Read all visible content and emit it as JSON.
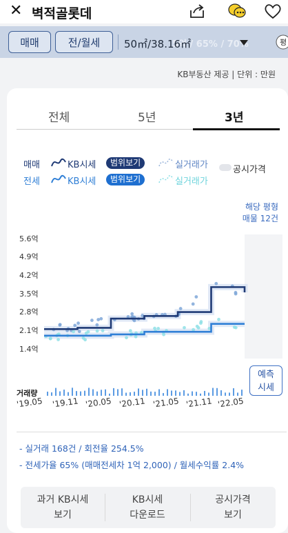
{
  "header": {
    "title": "벽적골롯데"
  },
  "filter": {
    "deal_type": "매매",
    "lease_type": "전/월세",
    "area": "50㎡/38.16㎡",
    "faded_background_text": "5억 / 65% / 70%"
  },
  "source_note": "KB부동산 제공 | 단위 : 만원",
  "tabs": [
    {
      "label": "전체"
    },
    {
      "label": "5년"
    },
    {
      "label": "3년"
    }
  ],
  "legend": {
    "sale_label": "매매",
    "lease_label": "전세",
    "kb_price": "KB시세",
    "range_view": "범위보기",
    "actual_price": "실거래가",
    "official_price": "공시가격"
  },
  "listing_note": {
    "line1": "해당 평형",
    "line2": "매물 12건"
  },
  "predict_button": {
    "line1": "예측",
    "line2": "시세"
  },
  "volume_label": "거래량",
  "colors": {
    "sale": "#1f3a75",
    "lease": "#2f7fd6",
    "actual_sale": "#7fa7d8",
    "actual_lease": "#8fe0e6",
    "badge_sale": "#1f3a75",
    "badge_lease": "#1e6fd0"
  },
  "chart_data": {
    "type": "line",
    "x": [
      "19.05",
      "19.11",
      "20.05",
      "20.11",
      "21.05",
      "21.11",
      "22.05"
    ],
    "x_labels": [
      "'19.05",
      "'19.11",
      "'20.05",
      "'20.11",
      "'21.05",
      "'21.11",
      "'22.05"
    ],
    "y_ticks": [
      "5.6억",
      "4.9억",
      "4.2억",
      "3.5억",
      "2.8억",
      "2.1억",
      "1.4억"
    ],
    "ylim": [
      1.4,
      5.6
    ],
    "series": [
      {
        "name": "매매 KB시세",
        "values": [
          2.1,
          2.15,
          2.5,
          2.6,
          2.75,
          3.7,
          3.5
        ]
      },
      {
        "name": "전세 KB시세",
        "values": [
          1.85,
          1.85,
          1.9,
          2.0,
          2.0,
          2.3,
          2.3
        ]
      }
    ]
  },
  "stats": {
    "line1": "- 실거래 168건 / 회전율 254.5%",
    "line2": "- 전세가율 65% (매매전세차 1억 2,000) / 월세수익률 2.4%"
  },
  "buttons": [
    {
      "line1": "과거 KB시세",
      "line2": "보기"
    },
    {
      "line1": "KB시세",
      "line2": "다운로드"
    },
    {
      "line1": "공시가격",
      "line2": "보기"
    }
  ]
}
